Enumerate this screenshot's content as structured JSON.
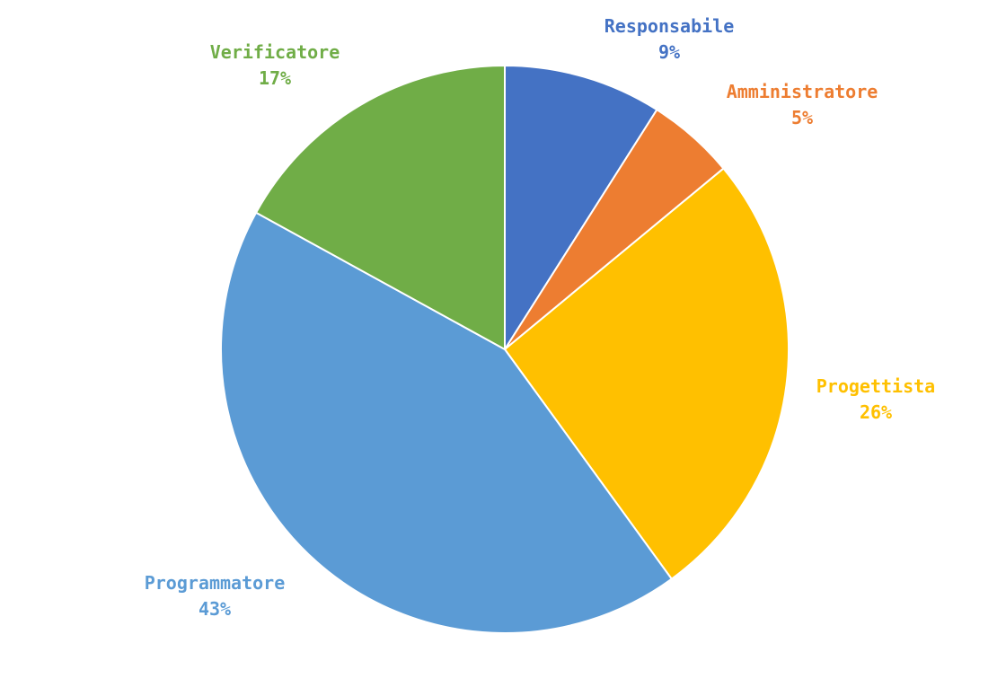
{
  "chart_data": {
    "type": "pie",
    "title": "",
    "slices": [
      {
        "label": "Responsabile",
        "value": 9,
        "display": "9%",
        "color": "#4472C4"
      },
      {
        "label": "Amministratore",
        "value": 5,
        "display": "5%",
        "color": "#ED7D31"
      },
      {
        "label": "Progettista",
        "value": 26,
        "display": "26%",
        "color": "#FFC000"
      },
      {
        "label": "Programmatore",
        "value": 43,
        "display": "43%",
        "color": "#5B9BD5"
      },
      {
        "label": "Verificatore",
        "value": 17,
        "display": "17%",
        "color": "#70AD47"
      }
    ],
    "start_angle": "12 o'clock",
    "direction": "clockwise",
    "legend": "none",
    "data_labels": "outside, category name and percentage"
  }
}
